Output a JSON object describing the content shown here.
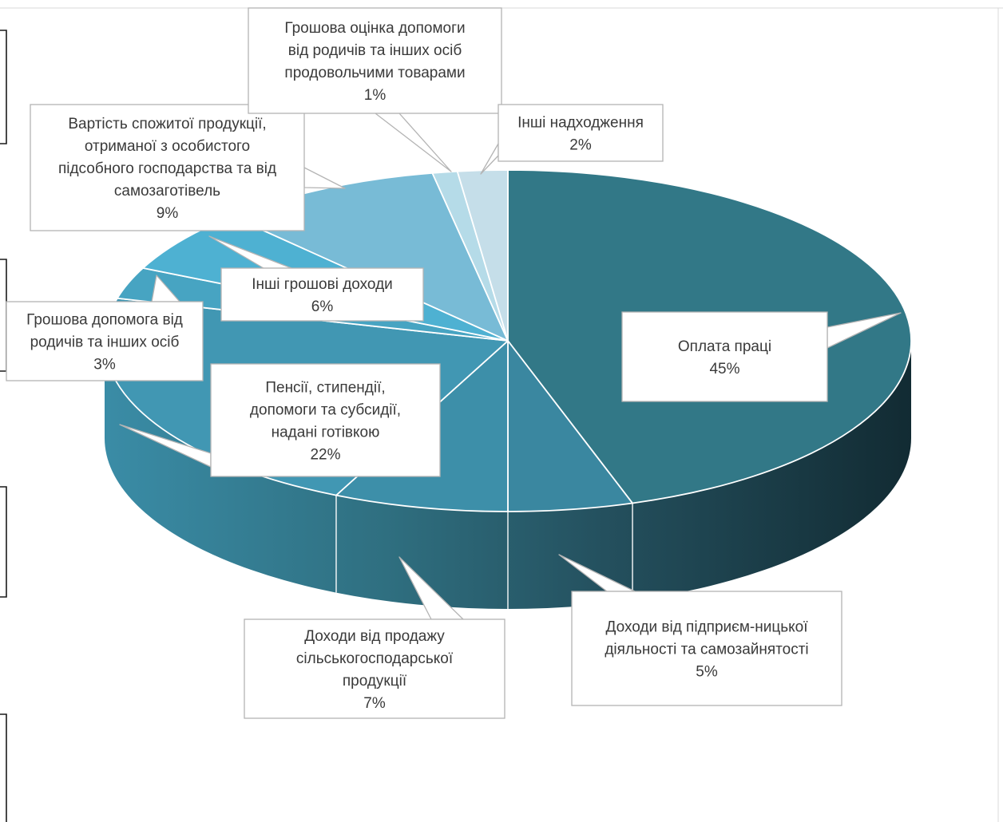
{
  "chart_data": {
    "type": "pie",
    "title": "",
    "slices": [
      {
        "label": "Оплата праці",
        "value": 45,
        "value_label": "45%",
        "color": "#327887"
      },
      {
        "label": "Доходи від підприєм-ницької діяльності та самозайнятості",
        "value": 5,
        "value_label": "5%",
        "color": "#3a87a0"
      },
      {
        "label": "Доходи від продажу сільськогосподарської продукції",
        "value": 7,
        "value_label": "7%",
        "color": "#3d8fa9"
      },
      {
        "label": "Пенсії, стипендії, допомоги та субсидії, надані готівкою",
        "value": 22,
        "value_label": "22%",
        "color": "#4197b3"
      },
      {
        "label": "Грошова допомога від родичів та інших осіб",
        "value": 3,
        "value_label": "3%",
        "color": "#47a4c2"
      },
      {
        "label": "Інші грошові доходи",
        "value": 6,
        "value_label": "6%",
        "color": "#4eb1d2"
      },
      {
        "label": "Вартість спожитої продукції, отриманої з особистого підсобного господарства та від самозаготівель",
        "value": 9,
        "value_label": "9%",
        "color": "#78bbd6"
      },
      {
        "label": "Грошова оцінка допомоги від родичів та інших осіб продовольчими товарами",
        "value": 1,
        "value_label": "1%",
        "color": "#b5dbe8"
      },
      {
        "label": "Інші надходження",
        "value": 2,
        "value_label": "2%",
        "color": "#c5dee9"
      }
    ],
    "label_lines": [
      [
        "Оплата праці"
      ],
      [
        "Доходи від підприєм-ницької",
        "діяльності та самозайнятості"
      ],
      [
        "Доходи від продажу",
        "сільськогосподарської",
        "продукції"
      ],
      [
        "Пенсії, стипендії,",
        "допомоги та субсидії,",
        "надані готівкою"
      ],
      [
        "Грошова допомога від",
        "родичів та інших осіб"
      ],
      [
        "Інші грошові доходи"
      ],
      [
        "Вартість спожитої продукції,",
        "отриманої з особистого",
        "підсобного господарства та від",
        "самозаготівель"
      ],
      [
        "Грошова оцінка допомоги",
        "від родичів та інших осіб",
        "продовольчими товарами"
      ],
      [
        "Інші надходження"
      ]
    ],
    "style": "3d-pie",
    "legend": "none"
  }
}
